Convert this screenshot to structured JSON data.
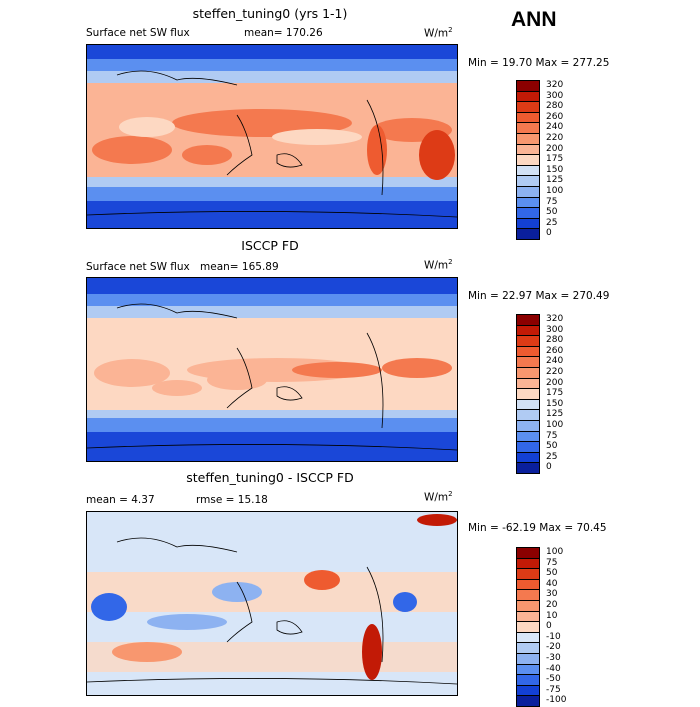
{
  "season": "ANN",
  "panels": [
    {
      "title": "steffen_tuning0 (yrs 1-1)",
      "left_label": "Surface net SW flux",
      "right_label": "mean= 170.26",
      "unit": "W/m",
      "unit_exp": "2",
      "min_max": "Min =  19.70 Max = 277.25",
      "levels": [
        "320",
        "300",
        "280",
        "260",
        "240",
        "220",
        "200",
        "175",
        "150",
        "125",
        "100",
        "75",
        "50",
        "25",
        "0"
      ],
      "colors": [
        "#8b0000",
        "#c21a06",
        "#dd3b16",
        "#ee5b30",
        "#f4794f",
        "#f8976f",
        "#fbb495",
        "#fdd8c2",
        "#d2e1f5",
        "#b0cbf3",
        "#8db2f1",
        "#5b8ff0",
        "#3267e8",
        "#1340d4",
        "#0a1f9c"
      ]
    },
    {
      "title": "ISCCP FD",
      "left_label": "Surface net SW flux",
      "right_label": "mean= 165.89",
      "unit": "W/m",
      "unit_exp": "2",
      "min_max": "Min =  22.97 Max = 270.49",
      "levels": [
        "320",
        "300",
        "280",
        "260",
        "240",
        "220",
        "200",
        "175",
        "150",
        "125",
        "100",
        "75",
        "50",
        "25",
        "0"
      ],
      "colors": [
        "#8b0000",
        "#c21a06",
        "#dd3b16",
        "#ee5b30",
        "#f4794f",
        "#f8976f",
        "#fbb495",
        "#fdd8c2",
        "#d2e1f5",
        "#b0cbf3",
        "#8db2f1",
        "#5b8ff0",
        "#3267e8",
        "#1340d4",
        "#0a1f9c"
      ]
    },
    {
      "title": "steffen_tuning0 - ISCCP FD",
      "left_label": "mean =   4.37",
      "right_label": "rmse =  15.18",
      "unit": "W/m",
      "unit_exp": "2",
      "min_max": "Min = -62.19 Max =  70.45",
      "levels": [
        "100",
        "75",
        "50",
        "40",
        "30",
        "20",
        "10",
        "0",
        "-10",
        "-20",
        "-30",
        "-40",
        "-50",
        "-75",
        "-100"
      ],
      "colors": [
        "#8b0000",
        "#c21a06",
        "#dd3b16",
        "#ee5b30",
        "#f4794f",
        "#f8976f",
        "#fbb495",
        "#fdd8c2",
        "#d8e6f8",
        "#b0cbf3",
        "#8db2f1",
        "#5b8ff0",
        "#3267e8",
        "#1340d4",
        "#0a1f9c"
      ]
    }
  ]
}
